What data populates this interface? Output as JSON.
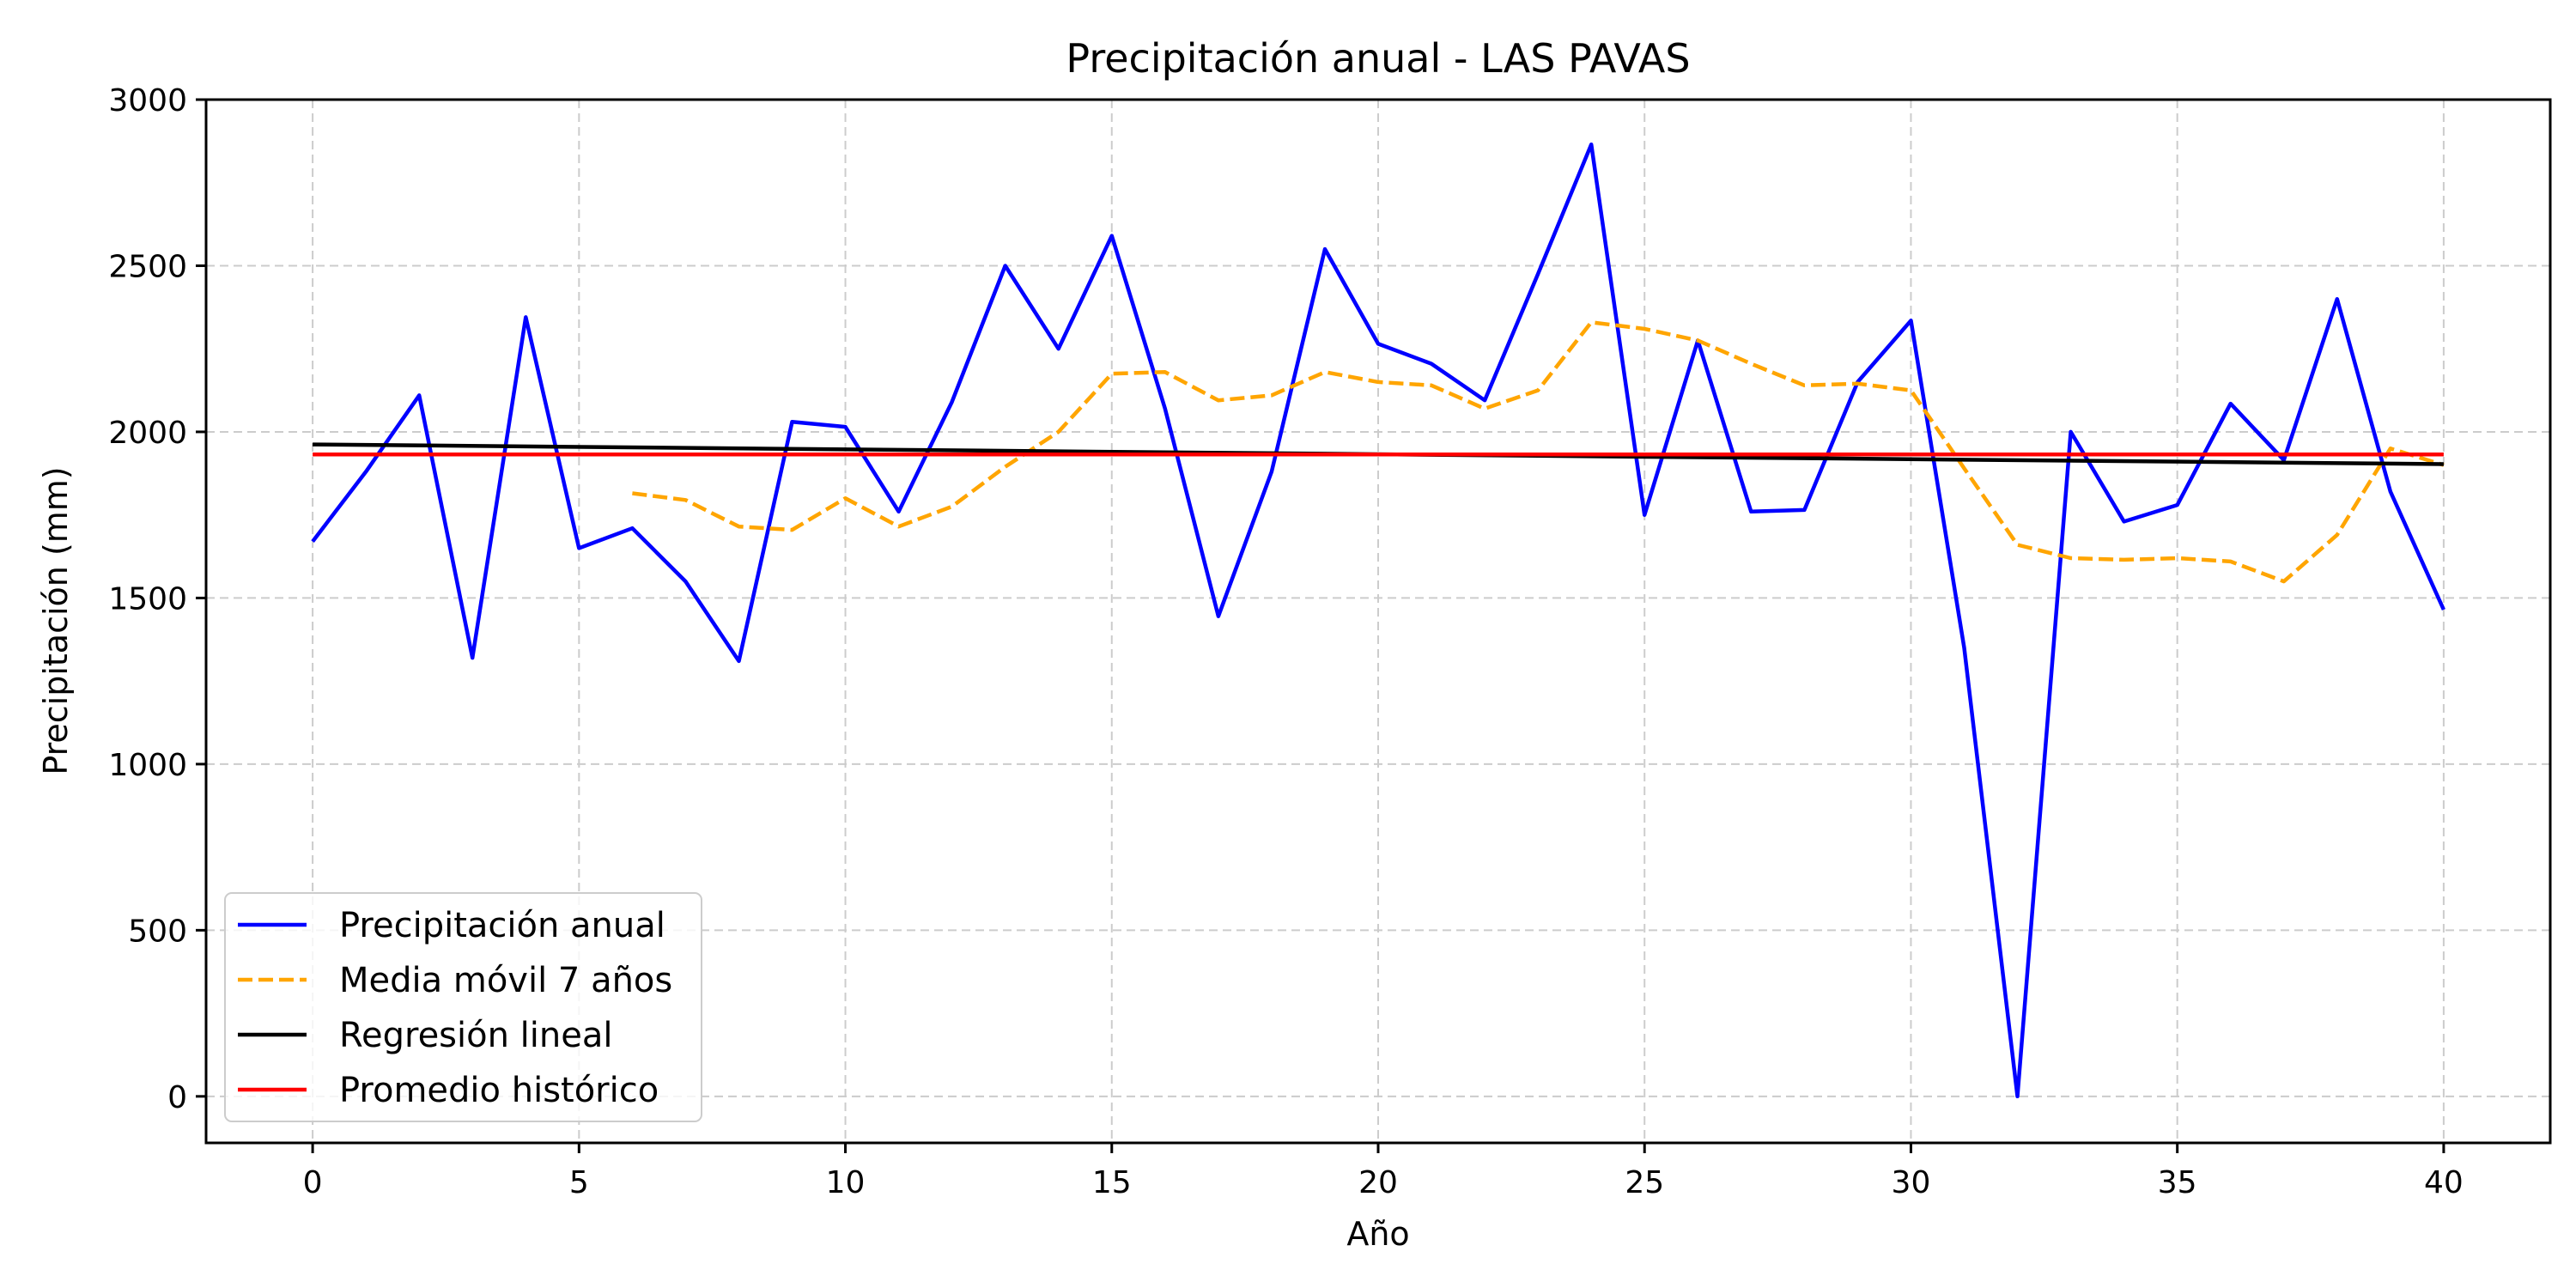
{
  "chart_data": {
    "type": "line",
    "title": "Precipitación anual - LAS PAVAS",
    "xlabel": "Año",
    "ylabel": "Precipitación (mm)",
    "xlim": [
      -2,
      42
    ],
    "ylim": [
      -140,
      3000
    ],
    "xticks": [
      0,
      5,
      10,
      15,
      20,
      25,
      30,
      35,
      40
    ],
    "yticks": [
      0,
      500,
      1000,
      1500,
      2000,
      2500,
      3000
    ],
    "grid": true,
    "legend_position": "lower-left",
    "series": [
      {
        "name": "Precipitación anual",
        "style": "solid",
        "color": "#0000ff",
        "x": [
          0,
          1,
          2,
          3,
          4,
          5,
          6,
          7,
          8,
          9,
          10,
          11,
          12,
          13,
          14,
          15,
          16,
          17,
          18,
          19,
          20,
          21,
          22,
          23,
          24,
          25,
          26,
          27,
          28,
          29,
          30,
          31,
          32,
          33,
          34,
          35,
          36,
          37,
          38,
          39,
          40
        ],
        "y": [
          1670,
          1880,
          2110,
          1320,
          2345,
          1650,
          1710,
          1550,
          1310,
          2030,
          2015,
          1760,
          2090,
          2500,
          2250,
          2590,
          2070,
          1445,
          1880,
          2550,
          2265,
          2205,
          2095,
          2475,
          2865,
          1750,
          2275,
          1760,
          1765,
          2150,
          2335,
          1350,
          0,
          2000,
          1730,
          1780,
          2085,
          1915,
          2400,
          1820,
          1465
        ]
      },
      {
        "name": "Media móvil 7 años",
        "style": "dashed",
        "color": "#ffa500",
        "x": [
          6,
          7,
          8,
          9,
          10,
          11,
          12,
          13,
          14,
          15,
          16,
          17,
          18,
          19,
          20,
          21,
          22,
          23,
          24,
          25,
          26,
          27,
          28,
          29,
          30,
          31,
          32,
          33,
          34,
          35,
          36,
          37,
          38,
          39,
          40
        ],
        "y": [
          1815,
          1795,
          1715,
          1705,
          1800,
          1715,
          1775,
          1895,
          2000,
          2175,
          2180,
          2095,
          2110,
          2180,
          2150,
          2140,
          2070,
          2125,
          2330,
          2310,
          2275,
          2205,
          2140,
          2145,
          2125,
          1890,
          1660,
          1620,
          1615,
          1620,
          1610,
          1550,
          1690,
          1950,
          1900
        ]
      },
      {
        "name": "Regresión lineal",
        "style": "solid",
        "color": "#000000",
        "x": [
          0,
          40
        ],
        "y": [
          1962,
          1903
        ]
      },
      {
        "name": "Promedio histórico",
        "style": "solid",
        "color": "#ff0000",
        "x": [
          0,
          40
        ],
        "y": [
          1932,
          1932
        ]
      }
    ]
  }
}
